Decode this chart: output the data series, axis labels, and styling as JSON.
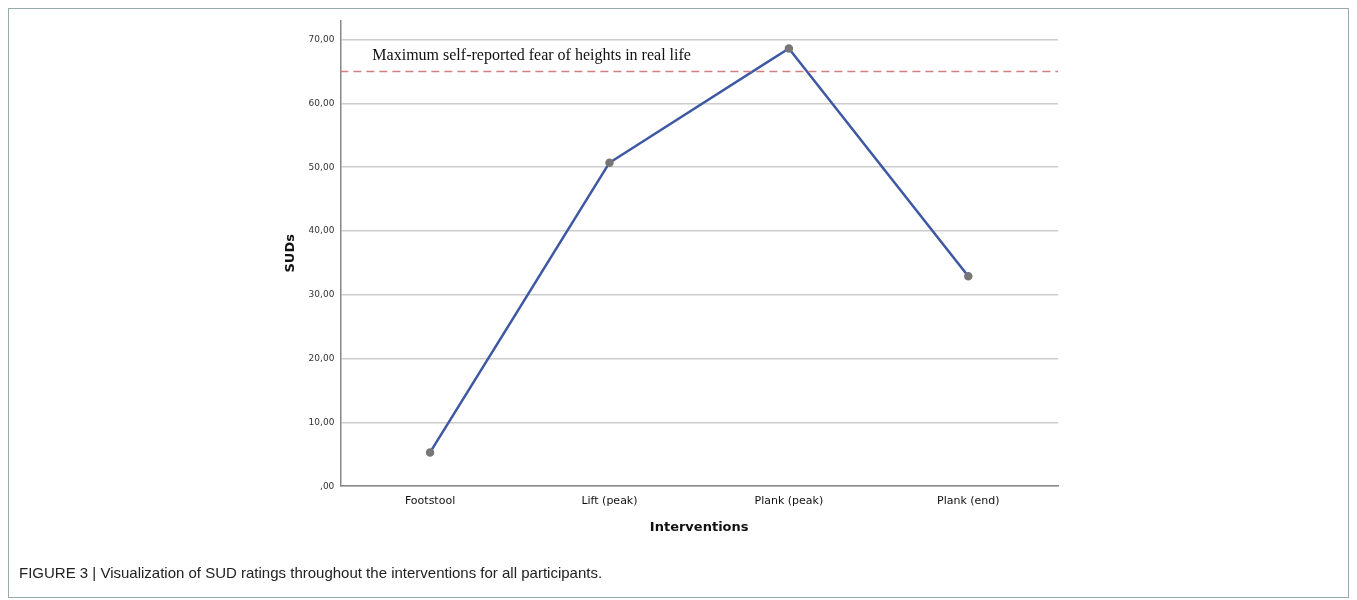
{
  "chart_data": {
    "type": "line",
    "xlabel": "Interventions",
    "ylabel": "SUDs",
    "categories": [
      "Footstool",
      "Lift (peak)",
      "Plank (peak)",
      "Plank (end)"
    ],
    "series": [
      {
        "color": "#3f58a3",
        "values": [
          5.3,
          50.7,
          68.6,
          32.9
        ]
      }
    ],
    "ylim": [
      0,
      73
    ],
    "yticks": [
      {
        "value": 0,
        "label": ",00"
      },
      {
        "value": 10,
        "label": "10,00"
      },
      {
        "value": 20,
        "label": "20,00"
      },
      {
        "value": 30,
        "label": "30,00"
      },
      {
        "value": 40,
        "label": "40,00"
      },
      {
        "value": 50,
        "label": "50,00"
      },
      {
        "value": 60,
        "label": "60,00"
      },
      {
        "value": 70,
        "label": "70,00"
      }
    ],
    "ref_lines": [
      {
        "axis": "y",
        "value": 65,
        "label": "Maximum self-reported fear of heights in real life",
        "color": "#d08080",
        "line_style": "dashed"
      }
    ],
    "grid": "y",
    "marker": "circle",
    "line_style": "solid",
    "annotations": [
      "FIGURE 3 | Visualization of SUD ratings throughout the interventions for all participants."
    ]
  }
}
